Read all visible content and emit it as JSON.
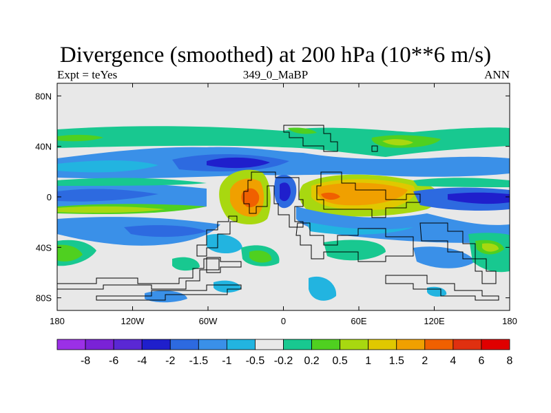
{
  "chart_data": {
    "type": "contour-map",
    "title": "Divergence (smoothed) at 200 hPa (10**6 m/s)",
    "subtitle_left": "Expt = teYes",
    "subtitle_center": "349_0_MaBP",
    "subtitle_right": "ANN",
    "x_axis": {
      "range": [
        -180,
        180
      ],
      "ticks": [
        {
          "value": -180,
          "label": "180"
        },
        {
          "value": -120,
          "label": "120W"
        },
        {
          "value": -60,
          "label": "60W"
        },
        {
          "value": 0,
          "label": "0"
        },
        {
          "value": 60,
          "label": "60E"
        },
        {
          "value": 120,
          "label": "120E"
        },
        {
          "value": 180,
          "label": "180"
        }
      ]
    },
    "y_axis": {
      "range": [
        -90,
        90
      ],
      "ticks": [
        {
          "value": 80,
          "label": "80N"
        },
        {
          "value": 40,
          "label": "40N"
        },
        {
          "value": 0,
          "label": "0"
        },
        {
          "value": -40,
          "label": "40S"
        },
        {
          "value": -80,
          "label": "80S"
        }
      ]
    },
    "colorbar": {
      "colors": [
        "#9b30e6",
        "#7a22d6",
        "#5a28d4",
        "#1f1fcc",
        "#2d6ae0",
        "#3a90e8",
        "#22b4e0",
        "#e8e8e8",
        "#18c890",
        "#4fd020",
        "#a8d810",
        "#e0c800",
        "#f0a000",
        "#f06000",
        "#e03010",
        "#e00000"
      ],
      "labels": [
        "-8",
        "-6",
        "-4",
        "-2",
        "-1.5",
        "-1",
        "-0.5",
        "-0.2",
        "0.2",
        "0.5",
        "1",
        "1.5",
        "2",
        "4",
        "6",
        "8"
      ]
    }
  }
}
